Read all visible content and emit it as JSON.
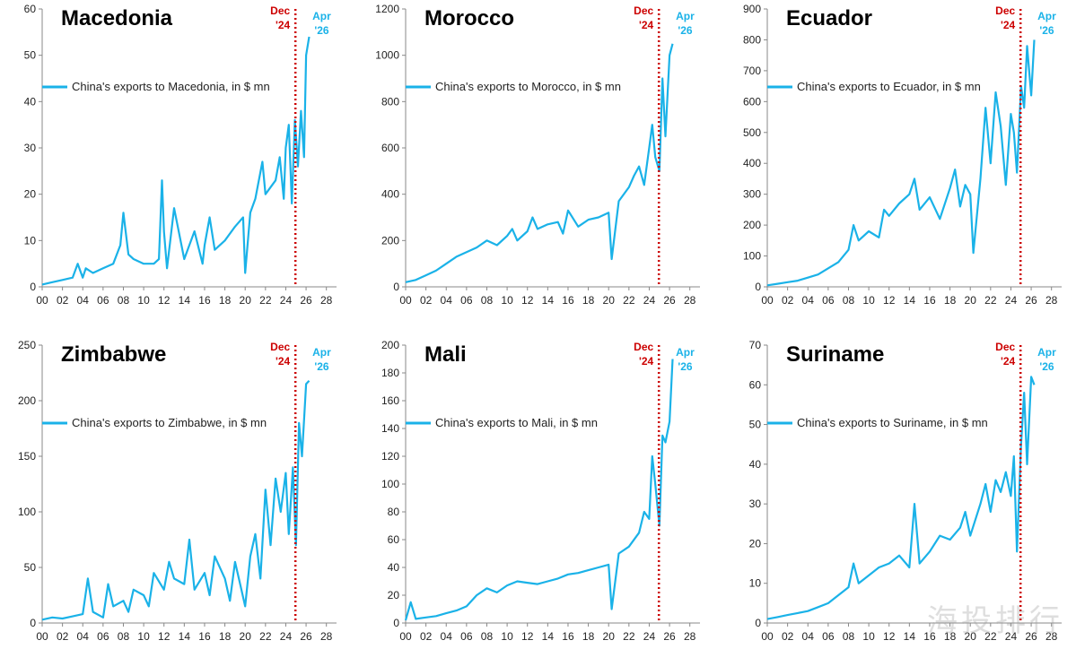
{
  "colors": {
    "line": "#1ab2e8",
    "dec_marker": "#cc0000",
    "apr_label": "#1ab2e8",
    "axis": "#888888"
  },
  "markers": {
    "dec_label_1": "Dec",
    "dec_label_2": "'24",
    "apr_label_1": "Apr",
    "apr_label_2": "'26"
  },
  "x_tick_labels": [
    "00",
    "02",
    "04",
    "06",
    "08",
    "10",
    "12",
    "14",
    "16",
    "18",
    "20",
    "22",
    "24",
    "26",
    "28"
  ],
  "watermark": "海投排行",
  "chart_data": [
    {
      "type": "line",
      "title": "Macedonia",
      "legend": "China's exports to Macedonia, in $ mn",
      "xlim": [
        2000,
        2029
      ],
      "ylim": [
        0,
        60
      ],
      "yticks": [
        0,
        10,
        20,
        30,
        40,
        50,
        60
      ],
      "dec_x": 2024.95,
      "apr_x": 2026.3,
      "series": [
        {
          "x": [
            2000,
            2001,
            2002,
            2003,
            2003.5,
            2004,
            2004.3,
            2005,
            2006,
            2007,
            2007.7,
            2008,
            2008.5,
            2009,
            2010,
            2011,
            2011.5,
            2011.8,
            2012,
            2012.3,
            2013,
            2014,
            2015,
            2015.8,
            2016,
            2016.5,
            2017,
            2018,
            2019,
            2019.8,
            2020,
            2020.5,
            2021,
            2021.7,
            2022,
            2023,
            2023.4,
            2023.8,
            2024,
            2024.3,
            2024.6,
            2024.9,
            2025.2,
            2025.5,
            2025.8,
            2026,
            2026.3
          ],
          "y": [
            0.5,
            1,
            1.5,
            2,
            5,
            2,
            4,
            3,
            4,
            5,
            9,
            16,
            7,
            6,
            5,
            5,
            6,
            23,
            12,
            4,
            17,
            6,
            12,
            5,
            9,
            15,
            8,
            10,
            13,
            15,
            3,
            16,
            19,
            27,
            20,
            23,
            28,
            19,
            30,
            35,
            18,
            36,
            26,
            38,
            28,
            50,
            54
          ]
        }
      ]
    },
    {
      "type": "line",
      "title": "Morocco",
      "legend": "China's exports to Morocco, in $ mn",
      "xlim": [
        2000,
        2029
      ],
      "ylim": [
        0,
        1200
      ],
      "yticks": [
        0,
        200,
        400,
        600,
        800,
        1000,
        1200
      ],
      "dec_x": 2024.95,
      "apr_x": 2026.3,
      "series": [
        {
          "x": [
            2000,
            2001,
            2002,
            2003,
            2004,
            2005,
            2006,
            2007,
            2008,
            2009,
            2010,
            2010.5,
            2011,
            2012,
            2012.5,
            2013,
            2014,
            2015,
            2015.5,
            2016,
            2017,
            2018,
            2019,
            2020,
            2020.3,
            2021,
            2022,
            2022.5,
            2023,
            2023.5,
            2024,
            2024.3,
            2024.6,
            2025,
            2025.3,
            2025.6,
            2026,
            2026.3
          ],
          "y": [
            20,
            30,
            50,
            70,
            100,
            130,
            150,
            170,
            200,
            180,
            220,
            250,
            200,
            240,
            300,
            250,
            270,
            280,
            230,
            330,
            260,
            290,
            300,
            320,
            120,
            370,
            430,
            480,
            520,
            440,
            600,
            700,
            560,
            500,
            900,
            650,
            1000,
            1050
          ]
        }
      ]
    },
    {
      "type": "line",
      "title": "Ecuador",
      "legend": "China's exports to Ecuador, in $ mn",
      "xlim": [
        2000,
        2029
      ],
      "ylim": [
        0,
        900
      ],
      "yticks": [
        0,
        100,
        200,
        300,
        400,
        500,
        600,
        700,
        800,
        900
      ],
      "dec_x": 2024.95,
      "apr_x": 2026.3,
      "series": [
        {
          "x": [
            2000,
            2001,
            2002,
            2003,
            2004,
            2005,
            2006,
            2007,
            2008,
            2008.5,
            2009,
            2010,
            2011,
            2011.5,
            2012,
            2013,
            2014,
            2014.5,
            2015,
            2016,
            2017,
            2018,
            2018.5,
            2019,
            2019.5,
            2020,
            2020.3,
            2021,
            2021.5,
            2022,
            2022.5,
            2023,
            2023.5,
            2024,
            2024.3,
            2024.6,
            2025,
            2025.3,
            2025.6,
            2026,
            2026.3
          ],
          "y": [
            5,
            10,
            15,
            20,
            30,
            40,
            60,
            80,
            120,
            200,
            150,
            180,
            160,
            250,
            230,
            270,
            300,
            350,
            250,
            290,
            220,
            320,
            380,
            260,
            330,
            300,
            110,
            350,
            580,
            400,
            630,
            520,
            330,
            560,
            500,
            370,
            650,
            580,
            780,
            620,
            800
          ]
        }
      ]
    },
    {
      "type": "line",
      "title": "Zimbabwe",
      "legend": "China's exports to Zimbabwe, in $ mn",
      "xlim": [
        2000,
        2029
      ],
      "ylim": [
        0,
        250
      ],
      "yticks": [
        0,
        50,
        100,
        150,
        200,
        250
      ],
      "dec_x": 2024.95,
      "apr_x": 2026.3,
      "series": [
        {
          "x": [
            2000,
            2001,
            2002,
            2003,
            2004,
            2004.5,
            2005,
            2006,
            2006.5,
            2007,
            2008,
            2008.5,
            2009,
            2010,
            2010.5,
            2011,
            2012,
            2012.5,
            2013,
            2014,
            2014.5,
            2015,
            2016,
            2016.5,
            2017,
            2018,
            2018.5,
            2019,
            2019.5,
            2020,
            2020.5,
            2021,
            2021.5,
            2022,
            2022.5,
            2023,
            2023.5,
            2024,
            2024.3,
            2024.7,
            2025,
            2025.3,
            2025.6,
            2026,
            2026.3
          ],
          "y": [
            3,
            5,
            4,
            6,
            8,
            40,
            10,
            5,
            35,
            15,
            20,
            10,
            30,
            25,
            15,
            45,
            30,
            55,
            40,
            35,
            75,
            30,
            45,
            25,
            60,
            40,
            20,
            55,
            35,
            15,
            60,
            80,
            40,
            120,
            70,
            130,
            100,
            135,
            80,
            140,
            70,
            180,
            150,
            215,
            218
          ]
        }
      ]
    },
    {
      "type": "line",
      "title": "Mali",
      "legend": "China's exports to Mali, in $ mn",
      "xlim": [
        2000,
        2029
      ],
      "ylim": [
        0,
        200
      ],
      "yticks": [
        0,
        20,
        40,
        60,
        80,
        100,
        120,
        140,
        160,
        180,
        200
      ],
      "dec_x": 2024.95,
      "apr_x": 2026.3,
      "series": [
        {
          "x": [
            2000,
            2000.5,
            2001,
            2002,
            2003,
            2004,
            2005,
            2006,
            2007,
            2008,
            2009,
            2010,
            2011,
            2012,
            2013,
            2014,
            2015,
            2016,
            2017,
            2018,
            2019,
            2020,
            2020.3,
            2021,
            2022,
            2023,
            2023.5,
            2024,
            2024.3,
            2024.6,
            2025,
            2025.3,
            2025.6,
            2026,
            2026.3
          ],
          "y": [
            2,
            15,
            3,
            4,
            5,
            7,
            9,
            12,
            20,
            25,
            22,
            27,
            30,
            29,
            28,
            30,
            32,
            35,
            36,
            38,
            40,
            42,
            10,
            50,
            55,
            65,
            80,
            75,
            120,
            100,
            70,
            135,
            130,
            145,
            190
          ]
        }
      ]
    },
    {
      "type": "line",
      "title": "Suriname",
      "legend": "China's exports to Suriname, in $ mn",
      "xlim": [
        2000,
        2029
      ],
      "ylim": [
        0,
        70
      ],
      "yticks": [
        0,
        10,
        20,
        30,
        40,
        50,
        60,
        70
      ],
      "dec_x": 2024.95,
      "apr_x": 2026.3,
      "series": [
        {
          "x": [
            2000,
            2001,
            2002,
            2003,
            2004,
            2005,
            2006,
            2007,
            2008,
            2008.5,
            2009,
            2010,
            2011,
            2012,
            2013,
            2014,
            2014.5,
            2015,
            2016,
            2017,
            2018,
            2019,
            2019.5,
            2020,
            2021,
            2021.5,
            2022,
            2022.5,
            2023,
            2023.5,
            2024,
            2024.3,
            2024.6,
            2025,
            2025.3,
            2025.6,
            2026,
            2026.3
          ],
          "y": [
            1,
            1.5,
            2,
            2.5,
            3,
            4,
            5,
            7,
            9,
            15,
            10,
            12,
            14,
            15,
            17,
            14,
            30,
            15,
            18,
            22,
            21,
            24,
            28,
            22,
            30,
            35,
            28,
            36,
            33,
            38,
            32,
            42,
            18,
            45,
            58,
            40,
            62,
            60
          ]
        }
      ]
    }
  ]
}
